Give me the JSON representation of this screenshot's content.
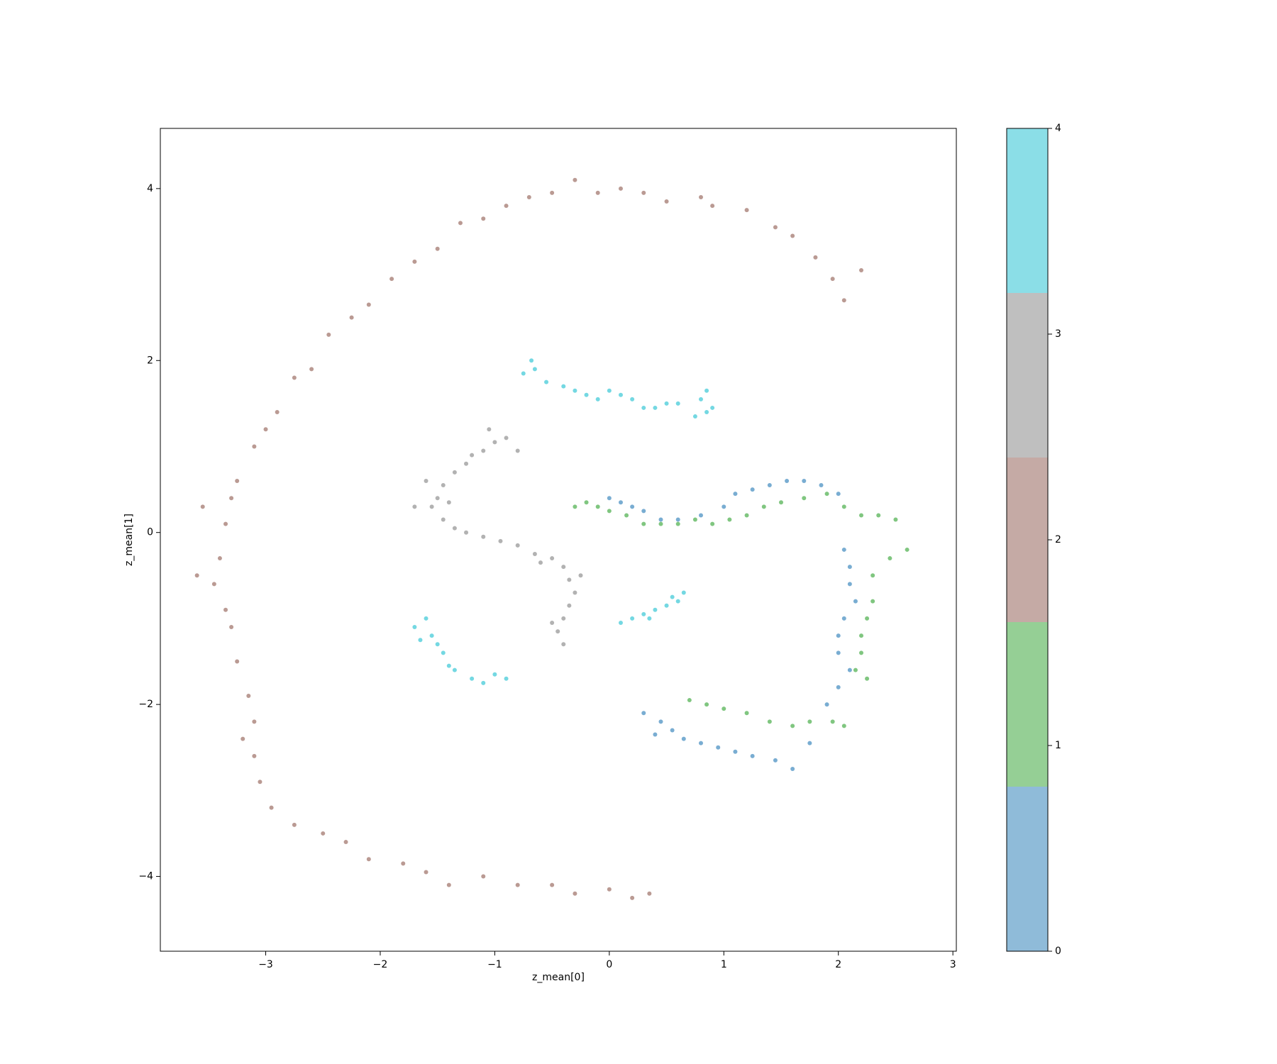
{
  "chart_data": {
    "type": "scatter",
    "xlabel": "z_mean[0]",
    "ylabel": "z_mean[1]",
    "xlim": [
      -3.92,
      3.03
    ],
    "ylim": [
      -4.87,
      4.7
    ],
    "xticks": [
      {
        "value": -3,
        "label": "−3"
      },
      {
        "value": -2,
        "label": "−2"
      },
      {
        "value": -1,
        "label": "−1"
      },
      0,
      1,
      2,
      3
    ],
    "yticks": [
      {
        "value": -4,
        "label": "−4"
      },
      {
        "value": -2,
        "label": "−2"
      },
      0,
      2,
      4
    ],
    "colorbar": {
      "lim": [
        0,
        4
      ],
      "ticks": [
        0,
        1,
        2,
        3,
        4
      ]
    },
    "series": [
      {
        "color": "#1f77b4",
        "x": [
          0.0,
          0.1,
          0.2,
          0.3,
          0.45,
          0.6,
          0.8,
          1.0,
          1.1,
          1.25,
          1.4,
          1.55,
          1.7,
          1.85,
          2.0,
          2.05,
          2.1,
          2.1,
          2.15,
          2.05,
          2.0,
          2.0,
          2.1,
          2.0,
          1.9,
          0.3,
          0.45,
          0.55,
          0.65,
          0.8,
          0.95,
          1.1,
          1.25,
          1.45,
          1.6,
          1.75,
          0.4
        ],
        "values": [
          0.4,
          0.35,
          0.3,
          0.25,
          0.15,
          0.15,
          0.2,
          0.3,
          0.45,
          0.5,
          0.55,
          0.6,
          0.6,
          0.55,
          0.45,
          -0.2,
          -0.4,
          -0.6,
          -0.8,
          -1.0,
          -1.2,
          -1.4,
          -1.6,
          -1.8,
          -2.0,
          -2.1,
          -2.2,
          -2.3,
          -2.4,
          -2.45,
          -2.5,
          -2.55,
          -2.6,
          -2.65,
          -2.75,
          -2.45,
          -2.35
        ]
      },
      {
        "color": "#2ca02c",
        "x": [
          -0.3,
          -0.2,
          -0.1,
          0.0,
          0.15,
          0.3,
          0.45,
          0.6,
          0.75,
          0.9,
          1.05,
          1.2,
          1.35,
          1.5,
          1.7,
          1.9,
          2.05,
          2.2,
          2.35,
          2.5,
          2.6,
          2.45,
          2.3,
          2.3,
          2.25,
          2.2,
          2.2,
          2.15,
          2.25,
          0.7,
          0.85,
          1.0,
          1.2,
          1.4,
          1.6,
          1.75,
          1.95,
          2.05
        ],
        "values": [
          0.3,
          0.35,
          0.3,
          0.25,
          0.2,
          0.1,
          0.1,
          0.1,
          0.15,
          0.1,
          0.15,
          0.2,
          0.3,
          0.35,
          0.4,
          0.45,
          0.3,
          0.2,
          0.2,
          0.15,
          -0.2,
          -0.3,
          -0.5,
          -0.8,
          -1.0,
          -1.2,
          -1.4,
          -1.6,
          -1.7,
          -1.95,
          -2.0,
          -2.05,
          -2.1,
          -2.2,
          -2.25,
          -2.2,
          -2.2,
          -2.25
        ]
      },
      {
        "color": "#8c564b",
        "x": [
          2.2,
          2.05,
          1.95,
          1.8,
          1.6,
          1.45,
          1.2,
          0.9,
          0.8,
          0.5,
          0.3,
          0.1,
          -0.1,
          -0.3,
          -0.5,
          -0.7,
          -0.9,
          -1.1,
          -1.3,
          -1.5,
          -1.7,
          -1.9,
          -2.1,
          -2.25,
          -2.45,
          -2.6,
          -2.75,
          -2.9,
          -3.0,
          -3.1,
          -3.25,
          -3.3,
          -3.35,
          -3.4,
          -3.45,
          -3.35,
          -3.3,
          -3.25,
          -3.15,
          -3.1,
          -3.1,
          -3.05,
          -2.95,
          -2.75,
          -2.5,
          -2.3,
          -2.1,
          -1.8,
          -1.6,
          -1.4,
          -1.1,
          -0.8,
          -0.5,
          -0.3,
          0.0,
          0.2,
          0.35,
          -3.55,
          -3.6,
          -3.2
        ],
        "values": [
          3.05,
          2.7,
          2.95,
          3.2,
          3.45,
          3.55,
          3.75,
          3.8,
          3.9,
          3.85,
          3.95,
          4.0,
          3.95,
          4.1,
          3.95,
          3.9,
          3.8,
          3.65,
          3.6,
          3.3,
          3.15,
          2.95,
          2.65,
          2.5,
          2.3,
          1.9,
          1.8,
          1.4,
          1.2,
          1.0,
          0.6,
          0.4,
          0.1,
          -0.3,
          -0.6,
          -0.9,
          -1.1,
          -1.5,
          -1.9,
          -2.2,
          -2.6,
          -2.9,
          -3.2,
          -3.4,
          -3.5,
          -3.6,
          -3.8,
          -3.85,
          -3.95,
          -4.1,
          -4.0,
          -4.1,
          -4.1,
          -4.2,
          -4.15,
          -4.25,
          -4.2,
          0.3,
          -0.5,
          -2.4
        ]
      },
      {
        "color": "#7f7f7f",
        "x": [
          -0.9,
          -1.0,
          -1.1,
          -1.2,
          -1.25,
          -1.35,
          -1.45,
          -1.5,
          -1.55,
          -1.45,
          -1.35,
          -1.25,
          -1.1,
          -0.95,
          -0.8,
          -0.65,
          -0.5,
          -0.4,
          -0.35,
          -0.3,
          -0.35,
          -0.4,
          -0.45,
          -0.4,
          -0.5,
          -1.6,
          -1.4,
          -1.05,
          -0.8,
          -1.7,
          -0.6,
          -0.25
        ],
        "values": [
          1.1,
          1.05,
          0.95,
          0.9,
          0.8,
          0.7,
          0.55,
          0.4,
          0.3,
          0.15,
          0.05,
          0.0,
          -0.05,
          -0.1,
          -0.15,
          -0.25,
          -0.3,
          -0.4,
          -0.55,
          -0.7,
          -0.85,
          -1.0,
          -1.15,
          -1.3,
          -1.05,
          0.6,
          0.35,
          1.2,
          0.95,
          0.3,
          -0.35,
          -0.5
        ]
      },
      {
        "color": "#17becf",
        "x": [
          -0.75,
          -0.65,
          -0.68,
          -0.55,
          -0.4,
          -0.3,
          -0.2,
          -0.1,
          0.0,
          0.1,
          0.2,
          0.3,
          0.4,
          0.5,
          0.6,
          0.8,
          0.85,
          0.9,
          0.85,
          0.75,
          -1.7,
          -1.6,
          -1.55,
          -1.5,
          -1.45,
          -1.4,
          -1.35,
          -1.2,
          -1.1,
          -1.0,
          -0.9,
          -1.65,
          0.1,
          0.2,
          0.3,
          0.4,
          0.5,
          0.6,
          0.65,
          0.55,
          0.35
        ],
        "values": [
          1.85,
          1.9,
          2.0,
          1.75,
          1.7,
          1.65,
          1.6,
          1.55,
          1.65,
          1.6,
          1.55,
          1.45,
          1.45,
          1.5,
          1.5,
          1.55,
          1.4,
          1.45,
          1.65,
          1.35,
          -1.1,
          -1.0,
          -1.2,
          -1.3,
          -1.4,
          -1.55,
          -1.6,
          -1.7,
          -1.75,
          -1.65,
          -1.7,
          -1.25,
          -1.05,
          -1.0,
          -0.95,
          -0.9,
          -0.85,
          -0.8,
          -0.7,
          -0.75,
          -1.0
        ]
      }
    ]
  }
}
